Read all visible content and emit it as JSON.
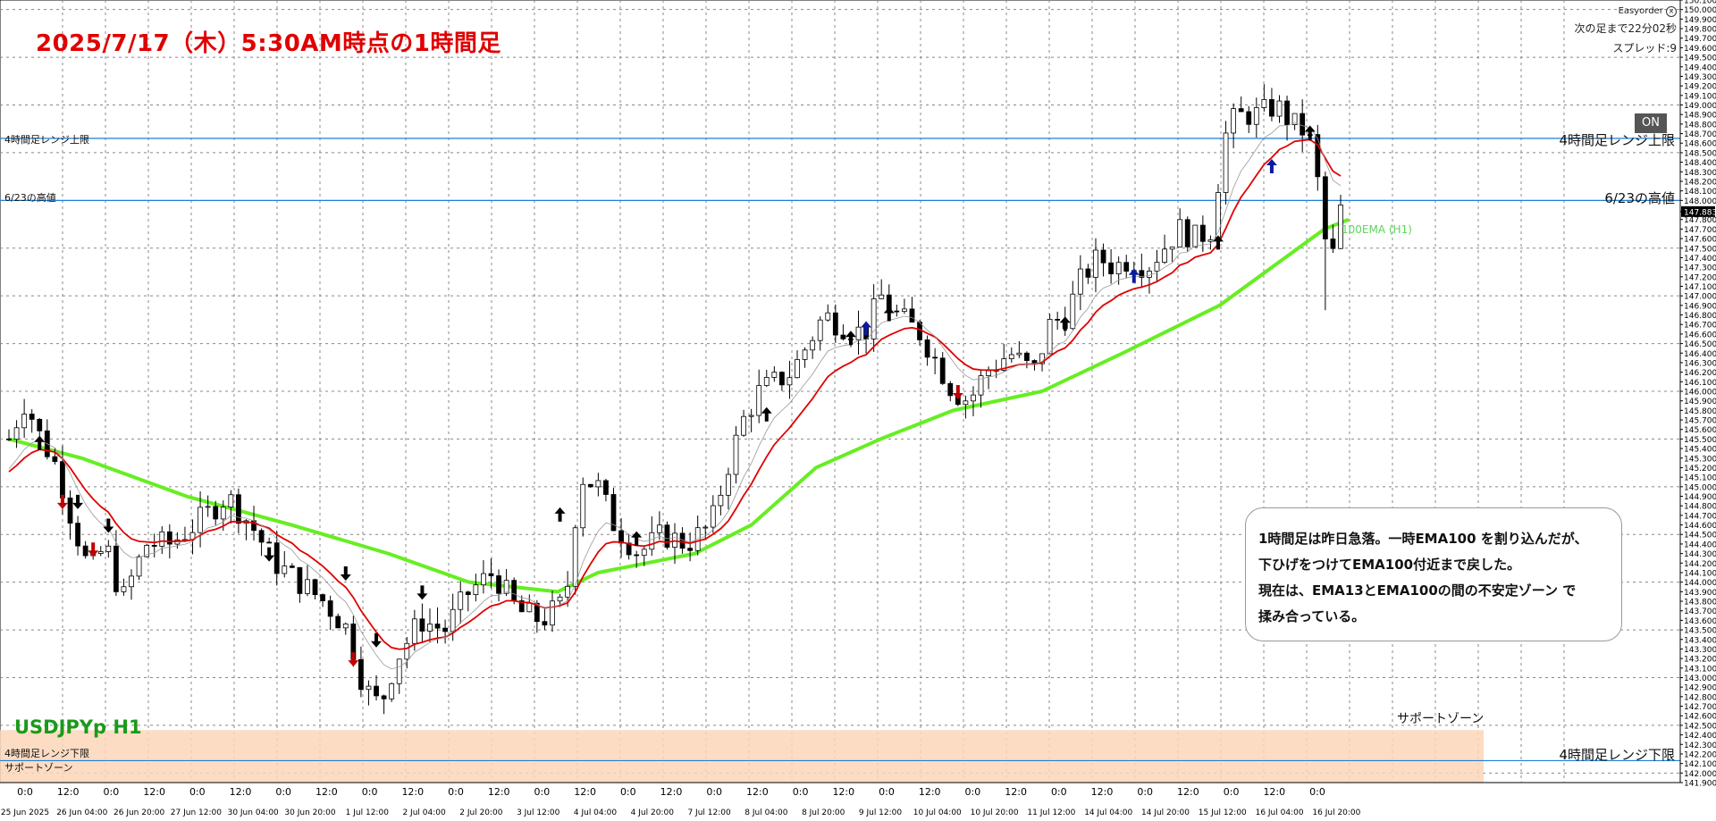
{
  "title": "2025/7/17（木）5:30AM時点の1時間足",
  "symbol": "USDJPYp H1",
  "info": {
    "app_name": "Easyorder",
    "countdown": "次の足まで22分02秒",
    "spread": "スプレッド:9",
    "on_button": "ON"
  },
  "annotation": {
    "lines": [
      "1時間足は昨日急落。一時EMA100 を割り込んだが、",
      "下ひげをつけてEMA100付近まで戻した。",
      "現在は、EMA13とEMA100の間の不安定ゾーン で",
      "揉み合っている。"
    ]
  },
  "levels": {
    "range_upper": {
      "price": 148.65,
      "label_small": "4時間足レンジ上限",
      "label_big": "4時間足レンジ上限"
    },
    "high_623": {
      "price": 148.0,
      "label_small": "6/23の高値",
      "label_big": "6/23の高値"
    },
    "range_lower": {
      "price": 142.13,
      "label_small": "4時間足レンジ下限",
      "label_big": "4時間足レンジ下限"
    },
    "support_zone": {
      "top": 142.45,
      "bottom": 141.9,
      "label_small": "サポートゾーン",
      "label_big": "サポートゾーン"
    }
  },
  "ema_label": "100EMA (H1)",
  "colors": {
    "title": "#e00000",
    "symbol": "#1a9a1a",
    "ema13": "#e00000",
    "ema100": "#66ee22",
    "level_line": "#1e7fd8",
    "support_zone": "#fbd6b8",
    "buy_arrow": "#00e5e5",
    "sell_arrow": "#ff7f3f",
    "strong_buy": "#0a1aa0",
    "strong_sell": "#c00000"
  },
  "chart_data": {
    "type": "candlestick",
    "ylim": [
      141.9,
      150.1
    ],
    "y_ticks": [
      "150.100",
      "150.000",
      "149.900",
      "149.800",
      "149.700",
      "149.600",
      "149.500",
      "149.400",
      "149.300",
      "149.200",
      "149.100",
      "149.000",
      "148.900",
      "148.800",
      "148.700",
      "148.600",
      "148.500",
      "148.400",
      "148.300",
      "148.200",
      "148.100",
      "148.000",
      "147.883",
      "147.800",
      "147.700",
      "147.600",
      "147.500",
      "147.400",
      "147.300",
      "147.200",
      "147.100",
      "147.000",
      "146.900",
      "146.800",
      "146.700",
      "146.600",
      "146.500",
      "146.400",
      "146.300",
      "146.200",
      "146.100",
      "146.000",
      "145.900",
      "145.800",
      "145.700",
      "145.600",
      "145.500",
      "145.400",
      "145.300",
      "145.200",
      "145.100",
      "145.000",
      "144.900",
      "144.800",
      "144.700",
      "144.600",
      "144.500",
      "144.400",
      "144.300",
      "144.200",
      "144.100",
      "144.000",
      "143.900",
      "143.800",
      "143.700",
      "143.600",
      "143.500",
      "143.400",
      "143.300",
      "143.200",
      "143.100",
      "143.000",
      "142.900",
      "142.800",
      "142.700",
      "142.600",
      "142.500",
      "142.400",
      "142.300",
      "142.200",
      "142.100",
      "142.000",
      "141.900"
    ],
    "current_price": 147.883,
    "x_labels_top": [
      "0:0",
      "12:0",
      "0:0",
      "12:0",
      "0:0",
      "12:0",
      "0:0",
      "12:0",
      "0:0",
      "12:0",
      "0:0",
      "12:0",
      "0:0",
      "12:0",
      "0:0",
      "12:0",
      "0:0",
      "12:0",
      "0:0",
      "12:0",
      "0:0",
      "12:0",
      "0:0",
      "12:0",
      "0:0",
      "12:0",
      "0:0",
      "12:0",
      "0:0",
      "12:0",
      "0:0"
    ],
    "x_labels_bottom": [
      "25 Jun 2025",
      "26 Jun 04:00",
      "26 Jun 20:00",
      "27 Jun 12:00",
      "30 Jun 04:00",
      "30 Jun 20:00",
      "1 Jul 12:00",
      "2 Jul 04:00",
      "2 Jul 20:00",
      "3 Jul 12:00",
      "4 Jul 04:00",
      "4 Jul 20:00",
      "7 Jul 12:00",
      "8 Jul 04:00",
      "8 Jul 20:00",
      "9 Jul 12:00",
      "10 Jul 04:00",
      "10 Jul 20:00",
      "11 Jul 12:00",
      "14 Jul 04:00",
      "14 Jul 20:00",
      "15 Jul 12:00",
      "16 Jul 04:00",
      "16 Jul 20:00"
    ],
    "path": [
      [
        0,
        145.5
      ],
      [
        2,
        145.9
      ],
      [
        4,
        145.5
      ],
      [
        6,
        145.2
      ],
      [
        8,
        144.6
      ],
      [
        10,
        144.1
      ],
      [
        12,
        144.4
      ],
      [
        14,
        143.8
      ],
      [
        17,
        144.4
      ],
      [
        20,
        144.4
      ],
      [
        23,
        144.6
      ],
      [
        27,
        144.9
      ],
      [
        30,
        144.6
      ],
      [
        33,
        144.2
      ],
      [
        36,
        144.0
      ],
      [
        39,
        143.8
      ],
      [
        42,
        143.5
      ],
      [
        44,
        142.9
      ],
      [
        46,
        142.7
      ],
      [
        48,
        143.2
      ],
      [
        51,
        143.6
      ],
      [
        54,
        143.5
      ],
      [
        57,
        143.9
      ],
      [
        60,
        144.1
      ],
      [
        63,
        143.7
      ],
      [
        66,
        143.6
      ],
      [
        69,
        143.8
      ],
      [
        70,
        144.6
      ],
      [
        71,
        145.1
      ],
      [
        73,
        145.0
      ],
      [
        75,
        144.6
      ],
      [
        78,
        144.3
      ],
      [
        81,
        144.5
      ],
      [
        84,
        144.4
      ],
      [
        87,
        144.6
      ],
      [
        89,
        145.2
      ],
      [
        91,
        145.7
      ],
      [
        93,
        146.0
      ],
      [
        95,
        146.1
      ],
      [
        97,
        146.2
      ],
      [
        99,
        146.5
      ],
      [
        101,
        146.8
      ],
      [
        103,
        146.7
      ],
      [
        106,
        146.6
      ],
      [
        108,
        147.0
      ],
      [
        110,
        146.8
      ],
      [
        113,
        146.6
      ],
      [
        115,
        146.3
      ],
      [
        117,
        146.0
      ],
      [
        119,
        145.9
      ],
      [
        121,
        146.2
      ],
      [
        124,
        146.4
      ],
      [
        127,
        146.2
      ],
      [
        129,
        146.7
      ],
      [
        131,
        146.8
      ],
      [
        133,
        147.2
      ],
      [
        135,
        147.4
      ],
      [
        137,
        147.3
      ],
      [
        139,
        147.4
      ],
      [
        141,
        147.3
      ],
      [
        143,
        147.5
      ],
      [
        145,
        147.7
      ],
      [
        147,
        147.6
      ],
      [
        149,
        147.7
      ],
      [
        150,
        148.3
      ],
      [
        151,
        148.8
      ],
      [
        153,
        148.9
      ],
      [
        155,
        148.9
      ],
      [
        157,
        149.0
      ],
      [
        159,
        148.8
      ],
      [
        161,
        148.7
      ],
      [
        162,
        148.3
      ],
      [
        163,
        147.6
      ],
      [
        164,
        147.4
      ],
      [
        165,
        147.9
      ]
    ],
    "ema13_anchor": 145.1,
    "ema100_points": [
      [
        0,
        145.5
      ],
      [
        9,
        145.3
      ],
      [
        22,
        144.9
      ],
      [
        35,
        144.6
      ],
      [
        47,
        144.3
      ],
      [
        57,
        144.0
      ],
      [
        68,
        143.9
      ],
      [
        73,
        144.1
      ],
      [
        85,
        144.3
      ],
      [
        92,
        144.6
      ],
      [
        100,
        145.2
      ],
      [
        108,
        145.5
      ],
      [
        117,
        145.8
      ],
      [
        128,
        146.0
      ],
      [
        138,
        146.4
      ],
      [
        150,
        146.9
      ],
      [
        163,
        147.7
      ],
      [
        166,
        147.8
      ]
    ],
    "signals": [
      {
        "bar": 4,
        "type": "buy",
        "price": 145.45
      },
      {
        "bar": 7,
        "type": "strong_sell",
        "price": 144.85
      },
      {
        "bar": 9,
        "type": "sell",
        "price": 144.85
      },
      {
        "bar": 11,
        "type": "strong_sell",
        "price": 144.35
      },
      {
        "bar": 13,
        "type": "sell",
        "price": 144.6
      },
      {
        "bar": 34,
        "type": "sell",
        "price": 144.3
      },
      {
        "bar": 44,
        "type": "sell",
        "price": 144.1
      },
      {
        "bar": 45,
        "type": "strong_sell",
        "price": 143.2
      },
      {
        "bar": 48,
        "type": "sell",
        "price": 143.4
      },
      {
        "bar": 54,
        "type": "sell",
        "price": 143.9
      },
      {
        "bar": 72,
        "type": "buy",
        "price": 144.7
      },
      {
        "bar": 82,
        "type": "buy",
        "price": 144.45
      },
      {
        "bar": 99,
        "type": "buy",
        "price": 145.75
      },
      {
        "bar": 110,
        "type": "buy",
        "price": 146.55
      },
      {
        "bar": 112,
        "type": "strong_buy",
        "price": 146.65
      },
      {
        "bar": 115,
        "type": "buy",
        "price": 146.8
      },
      {
        "bar": 124,
        "type": "strong_sell",
        "price": 146.0
      },
      {
        "bar": 138,
        "type": "buy",
        "price": 146.7
      },
      {
        "bar": 147,
        "type": "strong_buy",
        "price": 147.2
      },
      {
        "bar": 158,
        "type": "buy",
        "price": 147.55
      },
      {
        "bar": 165,
        "type": "strong_buy",
        "price": 148.35
      },
      {
        "bar": 170,
        "type": "buy",
        "price": 148.7
      }
    ]
  }
}
